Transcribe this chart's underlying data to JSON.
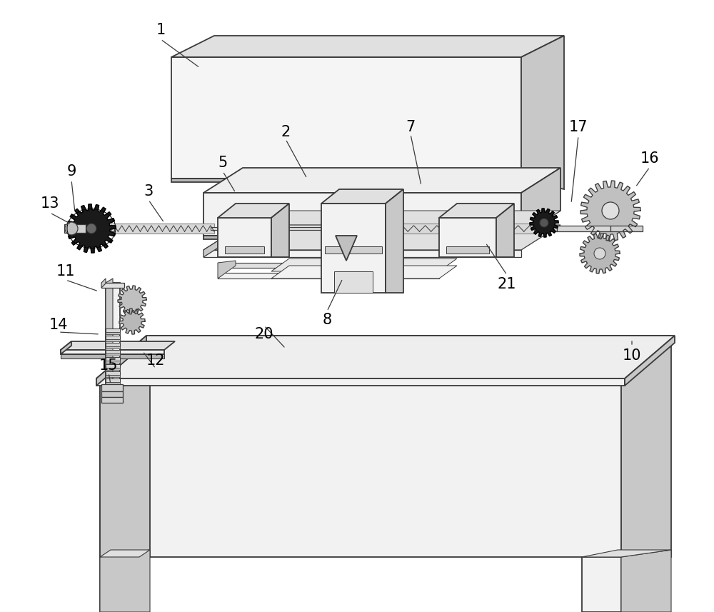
{
  "bg_color": "#ffffff",
  "line_color": "#3a3a3a",
  "face_light": "#f2f2f2",
  "face_mid": "#e0e0e0",
  "face_dark": "#c8c8c8",
  "face_darker": "#b8b8b8",
  "black": "#1a1a1a",
  "gray_gear": "#888888",
  "dpi": 100,
  "label_fs": 15
}
